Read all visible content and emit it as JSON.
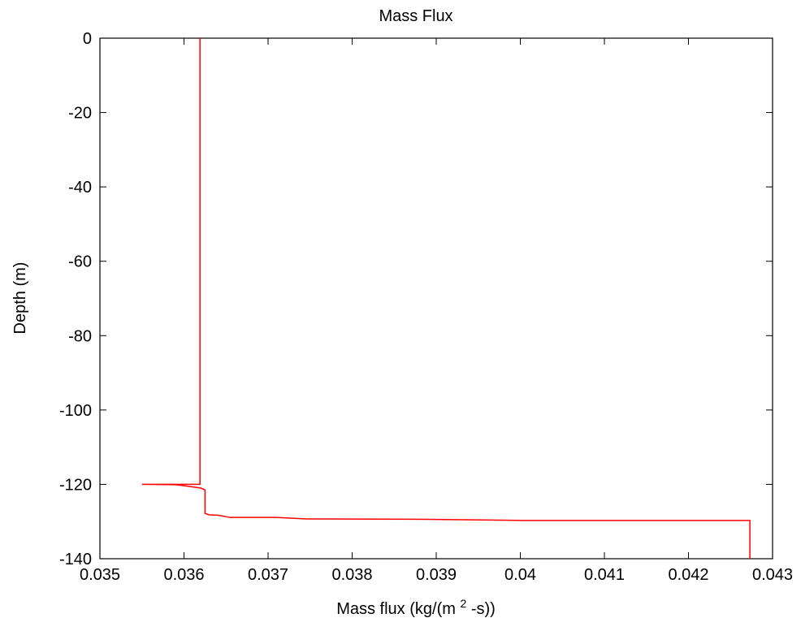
{
  "chart_data": {
    "type": "line",
    "title": "Mass Flux",
    "xlabel": {
      "before_superscript": "Mass flux (kg/(m",
      "superscript": "2",
      "after_superscript": "-s))"
    },
    "ylabel": "Depth (m)",
    "xlim": [
      0.035,
      0.043
    ],
    "ylim": [
      -140,
      0
    ],
    "grid": false,
    "legend": "none",
    "x_ticks": [
      {
        "value": 0.035,
        "label": "0.035"
      },
      {
        "value": 0.036,
        "label": "0.036"
      },
      {
        "value": 0.037,
        "label": "0.037"
      },
      {
        "value": 0.038,
        "label": "0.038"
      },
      {
        "value": 0.039,
        "label": "0.039"
      },
      {
        "value": 0.04,
        "label": "0.04"
      },
      {
        "value": 0.041,
        "label": "0.041"
      },
      {
        "value": 0.042,
        "label": "0.042"
      },
      {
        "value": 0.043,
        "label": "0.043"
      }
    ],
    "y_ticks": [
      {
        "value": 0,
        "label": "0"
      },
      {
        "value": -20,
        "label": "-20"
      },
      {
        "value": -40,
        "label": "-40"
      },
      {
        "value": -60,
        "label": "-60"
      },
      {
        "value": -80,
        "label": "-80"
      },
      {
        "value": -100,
        "label": "-100"
      },
      {
        "value": -120,
        "label": "-120"
      },
      {
        "value": -140,
        "label": "-140"
      }
    ],
    "series": [
      {
        "color": "#ff0000",
        "points": [
          {
            "x": 0.03619,
            "y": 0
          },
          {
            "x": 0.03619,
            "y": -120.0
          },
          {
            "x": 0.0355,
            "y": -120.0
          },
          {
            "x": 0.0359,
            "y": -120.1
          },
          {
            "x": 0.03605,
            "y": -120.5
          },
          {
            "x": 0.0362,
            "y": -121.0
          },
          {
            "x": 0.03625,
            "y": -121.5
          },
          {
            "x": 0.03625,
            "y": -127.8
          },
          {
            "x": 0.0363,
            "y": -128.2
          },
          {
            "x": 0.0364,
            "y": -128.3
          },
          {
            "x": 0.03655,
            "y": -128.9
          },
          {
            "x": 0.0371,
            "y": -128.9
          },
          {
            "x": 0.03745,
            "y": -129.3
          },
          {
            "x": 0.0389,
            "y": -129.4
          },
          {
            "x": 0.04,
            "y": -129.7
          },
          {
            "x": 0.04273,
            "y": -129.7
          },
          {
            "x": 0.04273,
            "y": -140
          }
        ]
      }
    ]
  },
  "colors": {
    "axes": "#000000",
    "background": "#ffffff",
    "line": "#ff0000"
  }
}
